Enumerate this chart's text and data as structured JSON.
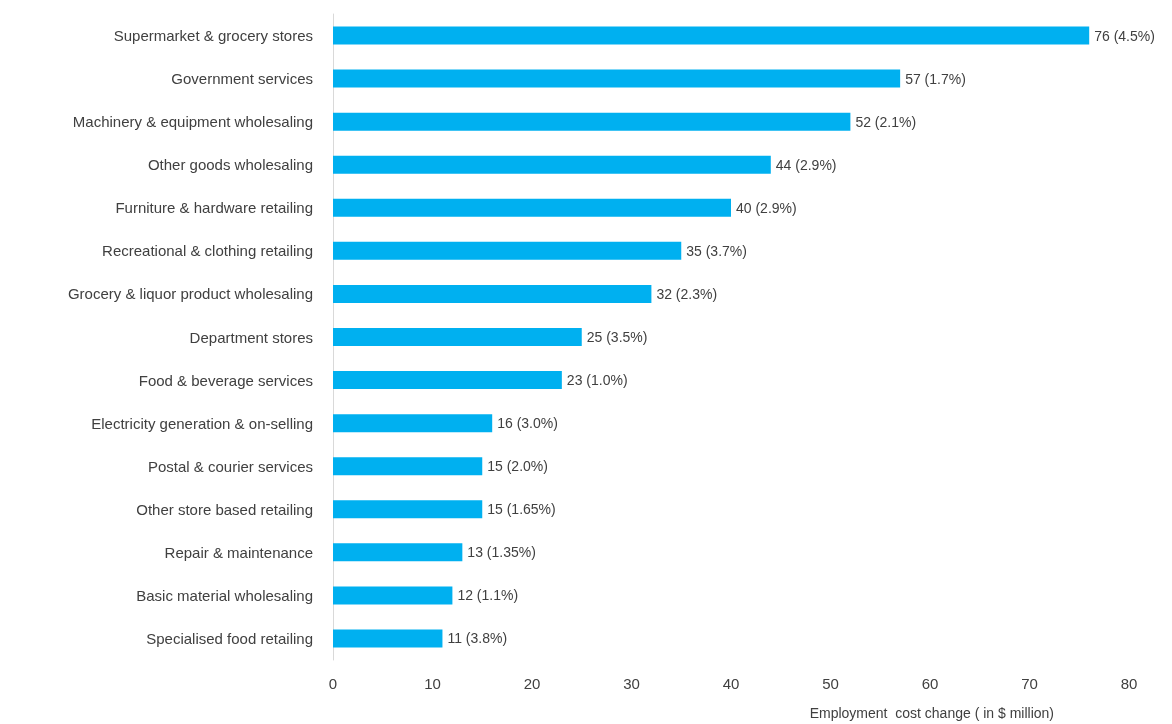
{
  "chart_data": {
    "type": "bar",
    "orientation": "horizontal",
    "xlabel": "Employment  cost change ( in $ million)",
    "categories": [
      "Supermarket & grocery stores",
      "Government services",
      "Machinery & equipment wholesaling",
      "Other goods wholesaling",
      "Furniture & hardware retailing",
      "Recreational & clothing retailing",
      "Grocery & liquor product wholesaling",
      "Department stores",
      "Food & beverage services",
      "Electricity generation & on-selling",
      "Postal & courier services",
      "Other store based retailing",
      "Repair & maintenance",
      "Basic material wholesaling",
      "Specialised food retailing"
    ],
    "values": [
      76,
      57,
      52,
      44,
      40,
      35,
      32,
      25,
      23,
      16,
      15,
      15,
      13,
      12,
      11
    ],
    "value_labels": [
      "76 (4.5%)",
      "57 (1.7%)",
      "52 (2.1%)",
      "44 (2.9%)",
      "40 (2.9%)",
      "35 (3.7%)",
      "32 (2.3%)",
      "25 (3.5%)",
      "23 (1.0%)",
      "16 (3.0%)",
      "15 (2.0%)",
      "15 (1.65%)",
      "13 (1.35%)",
      "12 (1.1%)",
      "11 (3.8%)"
    ],
    "color": "#00b0f0",
    "xlim": [
      0,
      80
    ],
    "xticks": [
      0,
      10,
      20,
      30,
      40,
      50,
      60,
      70,
      80
    ]
  }
}
